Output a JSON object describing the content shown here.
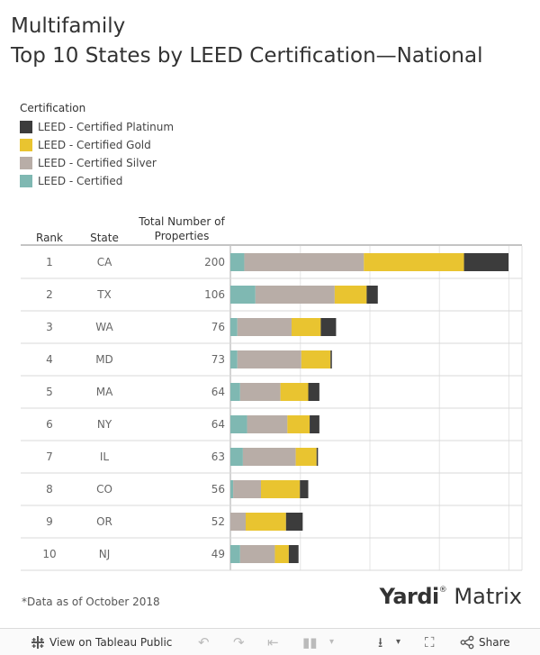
{
  "title_line1": "Multifamily",
  "title_line2": "Top 10 States by LEED Certification—National",
  "legend": {
    "title": "Certification",
    "items": [
      {
        "label": "LEED - Certified Platinum",
        "color": "#3c3c3c"
      },
      {
        "label": "LEED - Certified Gold",
        "color": "#e9c430"
      },
      {
        "label": "LEED - Certified Silver",
        "color": "#b8ada7"
      },
      {
        "label": "LEED - Certified",
        "color": "#7fb8b2"
      }
    ]
  },
  "columns": {
    "rank": "Rank",
    "state": "State",
    "total_line1": "Total Number of",
    "total_line2": "Properties"
  },
  "chart_data": {
    "type": "bar",
    "orientation": "horizontal",
    "stacked": true,
    "categories": [
      "CA",
      "TX",
      "WA",
      "MD",
      "MA",
      "NY",
      "IL",
      "CO",
      "OR",
      "NJ"
    ],
    "ranks": [
      "1",
      "2",
      "3",
      "4",
      "5",
      "6",
      "7",
      "8",
      "9",
      "10"
    ],
    "totals": [
      200,
      106,
      76,
      73,
      64,
      64,
      63,
      56,
      52,
      49
    ],
    "series": [
      {
        "name": "LEED - Certified",
        "color": "#7fb8b2",
        "values": [
          10,
          18,
          5,
          5,
          7,
          12,
          9,
          2,
          0,
          7
        ]
      },
      {
        "name": "LEED - Certified Silver",
        "color": "#b8ada7",
        "values": [
          86,
          57,
          39,
          46,
          29,
          29,
          38,
          20,
          11,
          25
        ]
      },
      {
        "name": "LEED - Certified Gold",
        "color": "#e9c430",
        "values": [
          72,
          23,
          21,
          21,
          20,
          16,
          15,
          28,
          29,
          10
        ]
      },
      {
        "name": "LEED - Certified Platinum",
        "color": "#3c3c3c",
        "values": [
          32,
          8,
          11,
          1,
          8,
          7,
          1,
          6,
          12,
          7
        ]
      }
    ],
    "xlim": [
      0,
      200
    ],
    "grid": true
  },
  "footnote": "*Data as of October 2018",
  "logo": {
    "part1": "Yardi",
    "mark": "®",
    "part2": " Matrix"
  },
  "footer": {
    "view_label": "View on Tableau Public",
    "share_label": "Share"
  }
}
